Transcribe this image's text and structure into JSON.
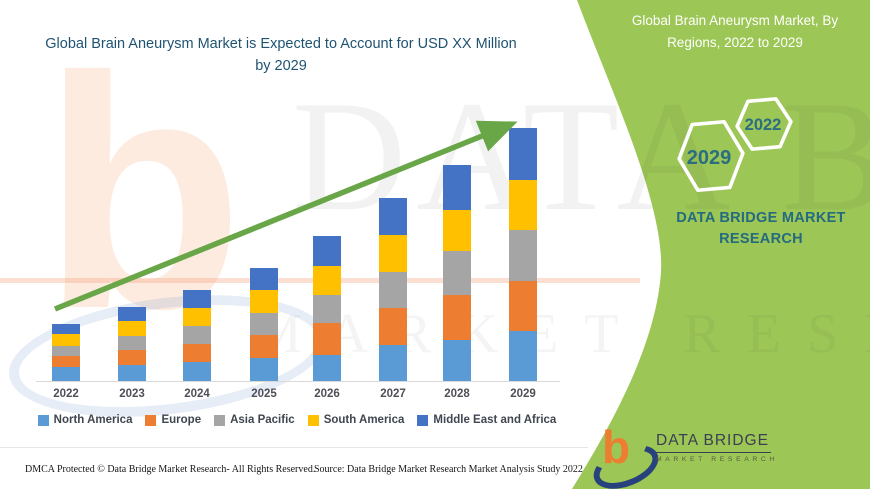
{
  "left": {
    "title": "Global Brain Aneurysm Market is Expected to Account for USD XX Million by 2029",
    "footer_dmca": "DMCA Protected © Data Bridge Market Research- All Rights Reserved.",
    "footer_source": "Source: Data Bridge Market Research Market Analysis Study 2022"
  },
  "panel": {
    "title": "Global Brain Aneurysm Market, By Regions, 2022 to 2029",
    "hexagons": [
      "2029",
      "2022"
    ],
    "brand_text": "DATA BRIDGE MARKET RESEARCH",
    "bg_color": "#9CC655",
    "accent_teal": "#256B80"
  },
  "logo": {
    "b_glyph": "b",
    "title": "DATA BRIDGE",
    "subtitle": "MARKET RESEARCH"
  },
  "watermark": {
    "row1": "DATA BRIDGE",
    "row2": "MARKET RESEARCH",
    "b_glyph": "b"
  },
  "chart_data": {
    "type": "bar",
    "stacked": true,
    "title": "Global Brain Aneurysm Market is Expected to Account for USD XX Million by 2029",
    "categories": [
      "2022",
      "2023",
      "2024",
      "2025",
      "2026",
      "2027",
      "2028",
      "2029"
    ],
    "series": [
      {
        "name": "North America",
        "color": "#5B9BD5",
        "values": [
          14,
          16,
          19,
          23,
          26,
          36,
          41,
          50
        ]
      },
      {
        "name": "Europe",
        "color": "#ED7D31",
        "values": [
          11,
          15,
          18,
          23,
          32,
          37,
          45,
          50
        ]
      },
      {
        "name": "Asia Pacific",
        "color": "#A5A5A5",
        "values": [
          10,
          14,
          18,
          22,
          28,
          36,
          44,
          51
        ]
      },
      {
        "name": "South America",
        "color": "#FFC000",
        "values": [
          12,
          15,
          18,
          23,
          29,
          37,
          41,
          50
        ]
      },
      {
        "name": "Middle East and Africa",
        "color": "#4472C4",
        "values": [
          10,
          14,
          18,
          22,
          30,
          37,
          45,
          52
        ]
      }
    ],
    "value_axis_visible": false,
    "note": "No numeric axis labels shown in source (values masked as XX Million); segment values estimated from bar pixel heights, relative units",
    "legend_position": "bottom",
    "trend_arrow": true,
    "trend_arrow_color": "#68A648"
  }
}
